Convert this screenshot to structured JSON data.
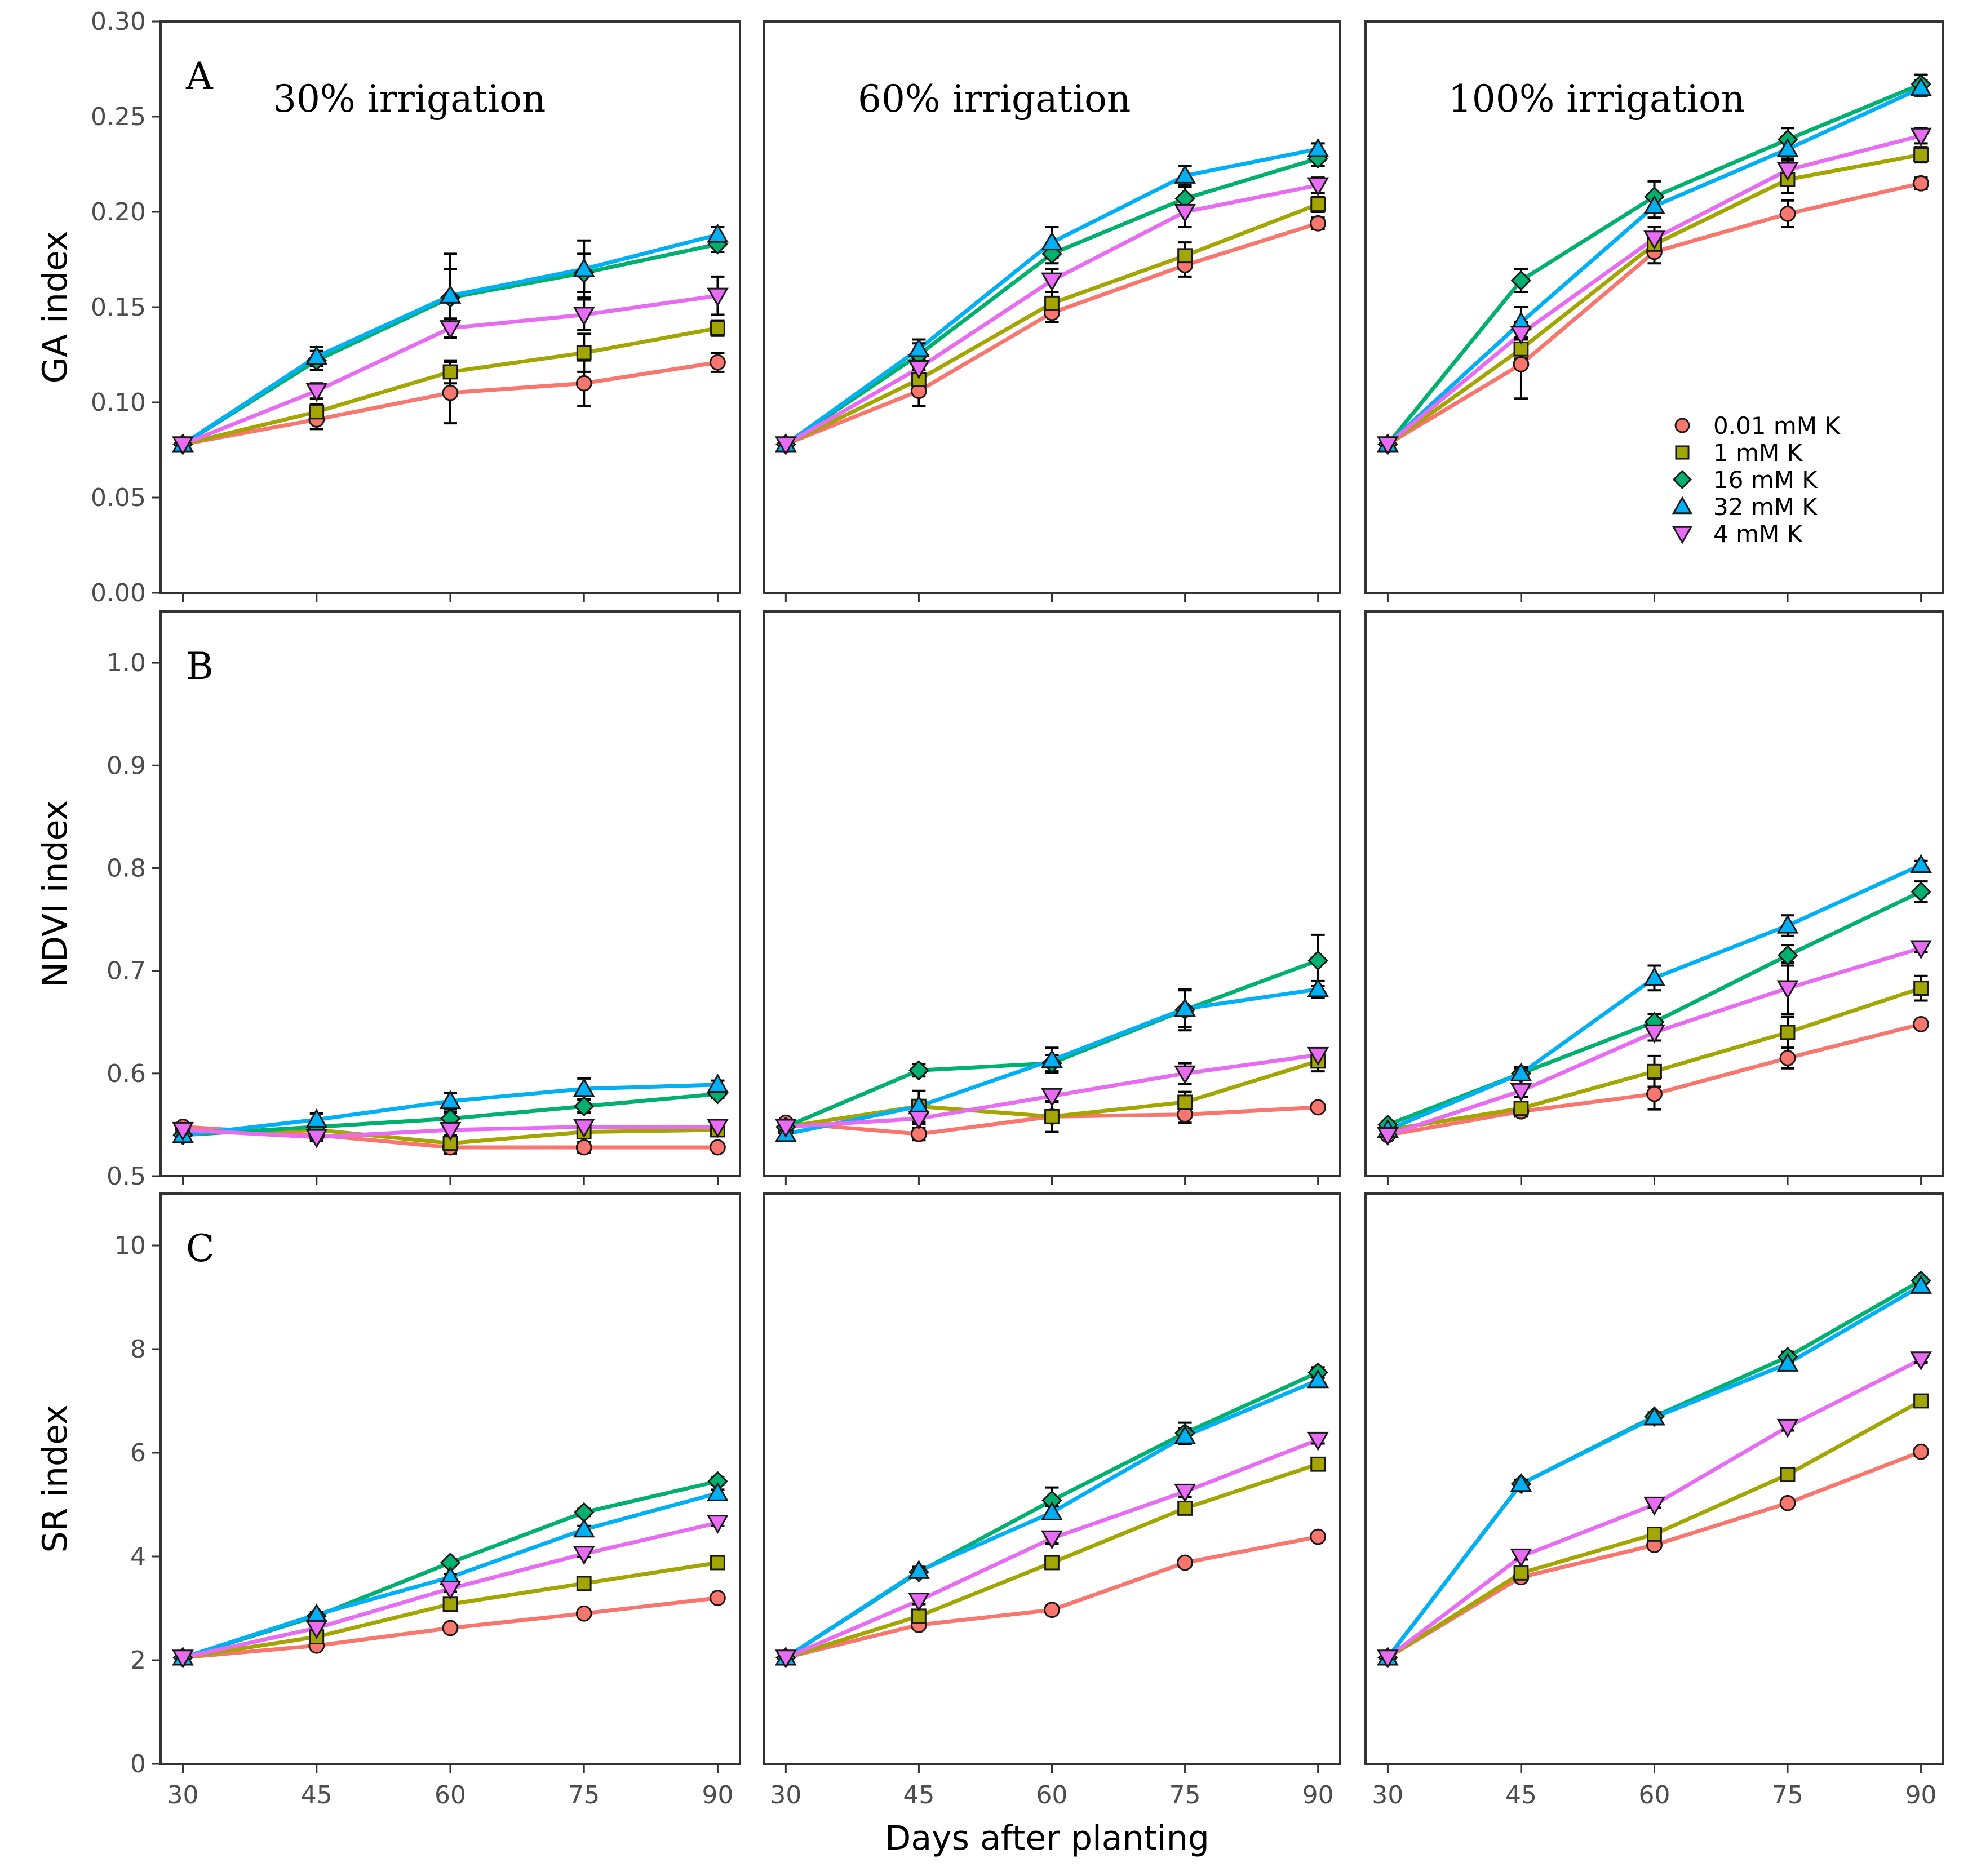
{
  "chart_data": {
    "type": "line",
    "xlabel": "Days after planting",
    "x": [
      30,
      45,
      60,
      75,
      90
    ],
    "xticks": [
      "30",
      "45",
      "60",
      "75",
      "90"
    ],
    "columns": [
      "30% irrigation",
      "60% irrigation",
      "100% irrigation"
    ],
    "series_names": [
      "0.01 mM K",
      "1 mM K",
      "16 mM  K",
      "32 mM K",
      "4 mM  K"
    ],
    "colors": [
      "#F8766D",
      "#A3A500",
      "#00B06F",
      "#00B0F6",
      "#E76BF3"
    ],
    "rows": [
      {
        "letter": "A",
        "ylabel": "GA index",
        "ylim": [
          0,
          0.3
        ],
        "yticks": [
          "0.00",
          "0.05",
          "0.10",
          "0.15",
          "0.20",
          "0.25",
          "0.30"
        ],
        "panels": [
          {
            "series": [
              {
                "values": [
                  0.078,
                  0.091,
                  0.105,
                  0.11,
                  0.121
                ],
                "err": [
                  0.002,
                  0.005,
                  0.016,
                  0.012,
                  0.005
                ]
              },
              {
                "values": [
                  0.078,
                  0.095,
                  0.116,
                  0.126,
                  0.139
                ],
                "err": [
                  0.002,
                  0.004,
                  0.006,
                  0.01,
                  0.004
                ]
              },
              {
                "values": [
                  0.078,
                  0.122,
                  0.155,
                  0.168,
                  0.183
                ],
                "err": [
                  0.002,
                  0.005,
                  0.015,
                  0.01,
                  0.004
                ]
              },
              {
                "values": [
                  0.078,
                  0.124,
                  0.156,
                  0.17,
                  0.188
                ],
                "err": [
                  0.002,
                  0.005,
                  0.022,
                  0.015,
                  0.004
                ]
              },
              {
                "values": [
                  0.078,
                  0.106,
                  0.139,
                  0.146,
                  0.156
                ],
                "err": [
                  0.002,
                  0.004,
                  0.005,
                  0.008,
                  0.01
                ]
              }
            ]
          },
          {
            "series": [
              {
                "values": [
                  0.078,
                  0.106,
                  0.147,
                  0.172,
                  0.194
                ],
                "err": [
                  0.002,
                  0.008,
                  0.005,
                  0.006,
                  0.003
                ]
              },
              {
                "values": [
                  0.078,
                  0.112,
                  0.152,
                  0.177,
                  0.204
                ],
                "err": [
                  0.002,
                  0.005,
                  0.006,
                  0.007,
                  0.004
                ]
              },
              {
                "values": [
                  0.078,
                  0.125,
                  0.178,
                  0.207,
                  0.228
                ],
                "err": [
                  0.002,
                  0.006,
                  0.005,
                  0.006,
                  0.004
                ]
              },
              {
                "values": [
                  0.078,
                  0.128,
                  0.184,
                  0.219,
                  0.233
                ],
                "err": [
                  0.002,
                  0.005,
                  0.008,
                  0.005,
                  0.003
                ]
              },
              {
                "values": [
                  0.078,
                  0.118,
                  0.164,
                  0.2,
                  0.214
                ],
                "err": [
                  0.002,
                  0.005,
                  0.006,
                  0.008,
                  0.004
                ]
              }
            ]
          },
          {
            "series": [
              {
                "values": [
                  0.078,
                  0.12,
                  0.179,
                  0.199,
                  0.215
                ],
                "err": [
                  0.002,
                  0.018,
                  0.006,
                  0.007,
                  0.003
                ]
              },
              {
                "values": [
                  0.078,
                  0.128,
                  0.183,
                  0.217,
                  0.23
                ],
                "err": [
                  0.002,
                  0.005,
                  0.006,
                  0.007,
                  0.004
                ]
              },
              {
                "values": [
                  0.078,
                  0.164,
                  0.208,
                  0.238,
                  0.267
                ],
                "err": [
                  0.002,
                  0.006,
                  0.008,
                  0.006,
                  0.005
                ]
              },
              {
                "values": [
                  0.078,
                  0.142,
                  0.203,
                  0.233,
                  0.265
                ],
                "err": [
                  0.002,
                  0.008,
                  0.006,
                  0.006,
                  0.004
                ]
              },
              {
                "values": [
                  0.078,
                  0.136,
                  0.186,
                  0.222,
                  0.24
                ],
                "err": [
                  0.002,
                  0.006,
                  0.006,
                  0.006,
                  0.004
                ]
              }
            ]
          }
        ]
      },
      {
        "letter": "B",
        "ylabel": "NDVI index",
        "ylim": [
          0.5,
          1.05
        ],
        "yticks": [
          "0.5",
          "0.6",
          "0.7",
          "0.8",
          "0.9",
          "1.0"
        ],
        "panels": [
          {
            "series": [
              {
                "values": [
                  0.548,
                  0.54,
                  0.528,
                  0.528,
                  0.528
                ],
                "err": [
                  0.003,
                  0.004,
                  0.006,
                  0.005,
                  0.003
                ]
              },
              {
                "values": [
                  0.543,
                  0.545,
                  0.532,
                  0.543,
                  0.545
                ],
                "err": [
                  0.003,
                  0.004,
                  0.006,
                  0.005,
                  0.003
                ]
              },
              {
                "values": [
                  0.54,
                  0.548,
                  0.556,
                  0.568,
                  0.58
                ],
                "err": [
                  0.003,
                  0.005,
                  0.006,
                  0.006,
                  0.004
                ]
              },
              {
                "values": [
                  0.54,
                  0.555,
                  0.573,
                  0.585,
                  0.589
                ],
                "err": [
                  0.003,
                  0.006,
                  0.008,
                  0.01,
                  0.004
                ]
              },
              {
                "values": [
                  0.545,
                  0.538,
                  0.545,
                  0.548,
                  0.548
                ],
                "err": [
                  0.003,
                  0.004,
                  0.005,
                  0.004,
                  0.003
                ]
              }
            ]
          },
          {
            "series": [
              {
                "values": [
                  0.552,
                  0.541,
                  0.558,
                  0.56,
                  0.567
                ],
                "err": [
                  0.003,
                  0.006,
                  0.006,
                  0.008,
                  0.003
                ]
              },
              {
                "values": [
                  0.548,
                  0.568,
                  0.558,
                  0.572,
                  0.612
                ],
                "err": [
                  0.003,
                  0.015,
                  0.015,
                  0.01,
                  0.01
                ]
              },
              {
                "values": [
                  0.548,
                  0.603,
                  0.61,
                  0.662,
                  0.71
                ],
                "err": [
                  0.003,
                  0.006,
                  0.008,
                  0.02,
                  0.025
                ]
              },
              {
                "values": [
                  0.541,
                  0.568,
                  0.613,
                  0.663,
                  0.682
                ],
                "err": [
                  0.003,
                  0.006,
                  0.012,
                  0.018,
                  0.008
                ]
              },
              {
                "values": [
                  0.548,
                  0.556,
                  0.578,
                  0.6,
                  0.618
                ],
                "err": [
                  0.003,
                  0.005,
                  0.006,
                  0.01,
                  0.006
                ]
              }
            ]
          },
          {
            "series": [
              {
                "values": [
                  0.54,
                  0.563,
                  0.58,
                  0.615,
                  0.648
                ],
                "err": [
                  0.003,
                  0.005,
                  0.015,
                  0.01,
                  0.003
                ]
              },
              {
                "values": [
                  0.545,
                  0.566,
                  0.602,
                  0.64,
                  0.683
                ],
                "err": [
                  0.003,
                  0.006,
                  0.015,
                  0.015,
                  0.012
                ]
              },
              {
                "values": [
                  0.55,
                  0.6,
                  0.65,
                  0.715,
                  0.777
                ],
                "err": [
                  0.003,
                  0.006,
                  0.008,
                  0.01,
                  0.01
                ]
              },
              {
                "values": [
                  0.545,
                  0.6,
                  0.693,
                  0.744,
                  0.803
                ],
                "err": [
                  0.003,
                  0.005,
                  0.012,
                  0.01,
                  0.004
                ]
              },
              {
                "values": [
                  0.54,
                  0.583,
                  0.64,
                  0.683,
                  0.722
                ],
                "err": [
                  0.003,
                  0.006,
                  0.008,
                  0.025,
                  0.004
                ]
              }
            ]
          }
        ]
      },
      {
        "letter": "C",
        "ylabel": "SR index",
        "ylim": [
          0,
          11
        ],
        "yticks": [
          "0",
          "2",
          "4",
          "6",
          "8",
          "10"
        ],
        "panels": [
          {
            "series": [
              {
                "values": [
                  2.05,
                  2.28,
                  2.62,
                  2.9,
                  3.2
                ],
                "err": [
                  0.03,
                  0.04,
                  0.05,
                  0.05,
                  0.05
                ]
              },
              {
                "values": [
                  2.05,
                  2.45,
                  3.08,
                  3.48,
                  3.88
                ],
                "err": [
                  0.03,
                  0.05,
                  0.06,
                  0.06,
                  0.06
                ]
              },
              {
                "values": [
                  2.05,
                  2.85,
                  3.88,
                  4.85,
                  5.45
                ],
                "err": [
                  0.03,
                  0.05,
                  0.06,
                  0.07,
                  0.07
                ]
              },
              {
                "values": [
                  2.05,
                  2.88,
                  3.6,
                  4.52,
                  5.22
                ],
                "err": [
                  0.03,
                  0.05,
                  0.06,
                  0.07,
                  0.07
                ]
              },
              {
                "values": [
                  2.05,
                  2.62,
                  3.38,
                  4.05,
                  4.65
                ],
                "err": [
                  0.03,
                  0.05,
                  0.06,
                  0.06,
                  0.06
                ]
              }
            ]
          },
          {
            "series": [
              {
                "values": [
                  2.05,
                  2.68,
                  2.97,
                  3.88,
                  4.38
                ],
                "err": [
                  0.03,
                  0.05,
                  0.08,
                  0.08,
                  0.05
                ]
              },
              {
                "values": [
                  2.05,
                  2.85,
                  3.88,
                  4.93,
                  5.78
                ],
                "err": [
                  0.03,
                  0.06,
                  0.1,
                  0.1,
                  0.07
                ]
              },
              {
                "values": [
                  2.05,
                  3.7,
                  5.08,
                  6.38,
                  7.55
                ],
                "err": [
                  0.03,
                  0.08,
                  0.25,
                  0.2,
                  0.1
                ]
              },
              {
                "values": [
                  2.05,
                  3.72,
                  4.85,
                  6.32,
                  7.4
                ],
                "err": [
                  0.03,
                  0.08,
                  0.12,
                  0.15,
                  0.1
                ]
              },
              {
                "values": [
                  2.05,
                  3.15,
                  4.35,
                  5.25,
                  6.25
                ],
                "err": [
                  0.03,
                  0.07,
                  0.1,
                  0.1,
                  0.07
                ]
              }
            ]
          },
          {
            "series": [
              {
                "values": [
                  2.05,
                  3.6,
                  4.22,
                  5.03,
                  6.02
                ],
                "err": [
                  0.03,
                  0.06,
                  0.06,
                  0.05,
                  0.04
                ]
              },
              {
                "values": [
                  2.05,
                  3.68,
                  4.43,
                  5.58,
                  7.0
                ],
                "err": [
                  0.03,
                  0.06,
                  0.08,
                  0.1,
                  0.06
                ]
              },
              {
                "values": [
                  2.05,
                  5.4,
                  6.7,
                  7.85,
                  9.32
                ],
                "err": [
                  0.03,
                  0.08,
                  0.08,
                  0.1,
                  0.07
                ]
              },
              {
                "values": [
                  2.05,
                  5.4,
                  6.68,
                  7.72,
                  9.22
                ],
                "err": [
                  0.03,
                  0.08,
                  0.08,
                  0.1,
                  0.07
                ]
              },
              {
                "values": [
                  2.05,
                  4.0,
                  5.0,
                  6.5,
                  7.8
                ],
                "err": [
                  0.03,
                  0.06,
                  0.06,
                  0.07,
                  0.06
                ]
              }
            ]
          }
        ]
      }
    ]
  }
}
